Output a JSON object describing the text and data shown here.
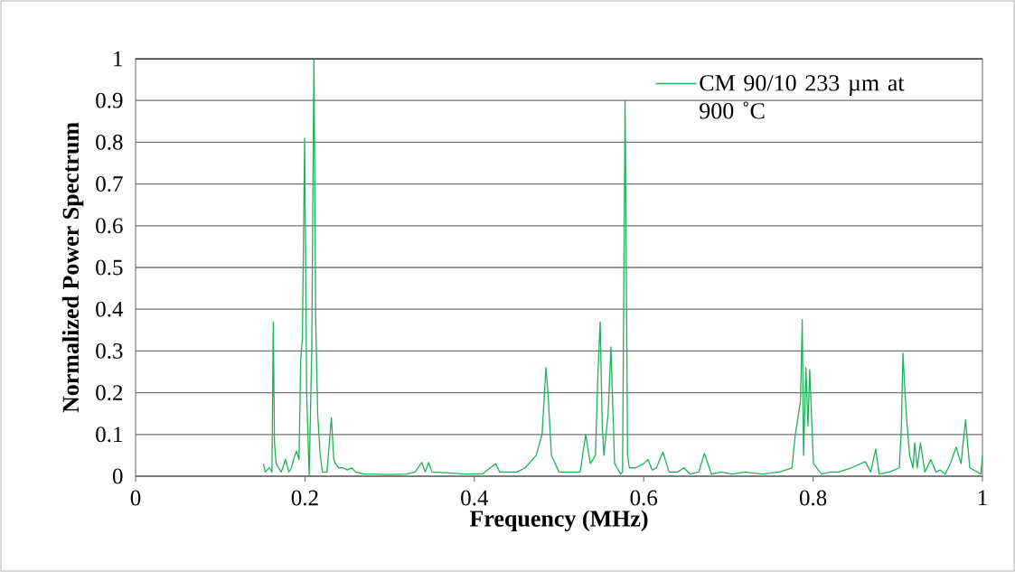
{
  "chart_data": {
    "type": "line",
    "xlabel": "Frequency (MHz)",
    "ylabel": "Normalized Power Spectrum",
    "xlim": [
      0,
      1
    ],
    "ylim": [
      0,
      1
    ],
    "xticks": [
      0,
      0.2,
      0.4,
      0.6,
      0.8,
      1
    ],
    "yticks": [
      0,
      0.1,
      0.2,
      0.3,
      0.4,
      0.5,
      0.6,
      0.7,
      0.8,
      0.9,
      1
    ],
    "grid": "y",
    "legend": "top right",
    "marker": "none",
    "line_style": "solid",
    "series": [
      {
        "name": "CM 90/10 233 µm at 900 ˚C",
        "color": "#1fb25a",
        "x": [
          0.151,
          0.153,
          0.158,
          0.161,
          0.1626,
          0.164,
          0.166,
          0.172,
          0.177,
          0.181,
          0.184,
          0.188,
          0.19,
          0.193,
          0.195,
          0.197,
          0.1996,
          0.202,
          0.205,
          0.208,
          0.2106,
          0.2127,
          0.215,
          0.218,
          0.2206,
          0.226,
          0.2312,
          0.234,
          0.236,
          0.24,
          0.245,
          0.25,
          0.255,
          0.26,
          0.27,
          0.28,
          0.3,
          0.32,
          0.33,
          0.338,
          0.342,
          0.346,
          0.35,
          0.37,
          0.39,
          0.41,
          0.425,
          0.43,
          0.45,
          0.46,
          0.473,
          0.48,
          0.4845,
          0.487,
          0.491,
          0.5,
          0.515,
          0.525,
          0.5315,
          0.537,
          0.543,
          0.546,
          0.5486,
          0.551,
          0.553,
          0.558,
          0.5613,
          0.5656,
          0.5728,
          0.575,
          0.578,
          0.581,
          0.583,
          0.59,
          0.6,
          0.605,
          0.61,
          0.615,
          0.6226,
          0.63,
          0.64,
          0.6475,
          0.655,
          0.665,
          0.6716,
          0.68,
          0.6916,
          0.705,
          0.72,
          0.74,
          0.76,
          0.775,
          0.779,
          0.7851,
          0.7872,
          0.7887,
          0.7915,
          0.794,
          0.796,
          0.8004,
          0.81,
          0.82,
          0.83,
          0.845,
          0.8616,
          0.868,
          0.874,
          0.878,
          0.89,
          0.9018,
          0.9043,
          0.9061,
          0.908,
          0.9107,
          0.914,
          0.918,
          0.92,
          0.923,
          0.9267,
          0.932,
          0.939,
          0.945,
          0.95,
          0.956,
          0.962,
          0.969,
          0.9747,
          0.98,
          0.985,
          0.994,
          0.998,
          1.0
        ],
        "values": [
          0.03,
          0.01,
          0.02,
          0.01,
          0.37,
          0.08,
          0.03,
          0.01,
          0.04,
          0.01,
          0.02,
          0.05,
          0.06,
          0.04,
          0.28,
          0.33,
          0.81,
          0.2,
          0.0,
          0.3,
          1.0,
          0.37,
          0.15,
          0.05,
          0.01,
          0.01,
          0.14,
          0.04,
          0.03,
          0.02,
          0.02,
          0.015,
          0.02,
          0.01,
          0.005,
          0.005,
          0.004,
          0.005,
          0.01,
          0.033,
          0.01,
          0.033,
          0.01,
          0.008,
          0.005,
          0.006,
          0.03,
          0.01,
          0.01,
          0.02,
          0.05,
          0.1,
          0.26,
          0.2,
          0.05,
          0.01,
          0.01,
          0.01,
          0.1,
          0.03,
          0.05,
          0.25,
          0.37,
          0.12,
          0.05,
          0.15,
          0.31,
          0.03,
          0.005,
          0.01,
          0.9,
          0.05,
          0.02,
          0.02,
          0.03,
          0.04,
          0.015,
          0.02,
          0.058,
          0.01,
          0.01,
          0.02,
          0.005,
          0.01,
          0.055,
          0.005,
          0.01,
          0.005,
          0.01,
          0.005,
          0.01,
          0.02,
          0.1,
          0.18,
          0.375,
          0.05,
          0.26,
          0.12,
          0.255,
          0.03,
          0.005,
          0.01,
          0.01,
          0.02,
          0.035,
          0.01,
          0.065,
          0.005,
          0.01,
          0.02,
          0.12,
          0.295,
          0.22,
          0.13,
          0.05,
          0.02,
          0.08,
          0.02,
          0.08,
          0.01,
          0.04,
          0.01,
          0.015,
          0.005,
          0.03,
          0.07,
          0.03,
          0.135,
          0.02,
          0.01,
          0.005,
          0.05
        ]
      }
    ]
  }
}
